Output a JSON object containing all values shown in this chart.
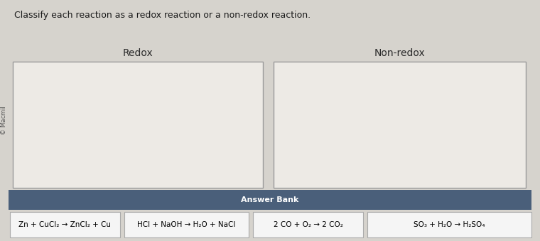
{
  "title": "Classify each reaction as a redox reaction or a non-redox reaction.",
  "copyright": "© Macmil",
  "redox_label": "Redox",
  "nonredox_label": "Non-redox",
  "answer_bank_label": "Answer Bank",
  "answer_bank_bg": "#4a5f7a",
  "answer_bank_items": [
    "Zn + CuCl₂ → ZnCl₂ + Cu",
    "HCl + NaOH → H₂O + NaCl",
    "2 CO + O₂ → 2 CO₂",
    "SO₃ + H₂O → H₂SO₄"
  ],
  "bg_color": "#d6d3cd",
  "box_bg": "#edeae5",
  "box_edge": "#9a9a9a",
  "answer_bank_item_bg": "#f5f5f5",
  "answer_bank_item_border": "#aaaaaa",
  "answer_bank_text_color": "#ffffff",
  "title_color": "#1a1a1a",
  "label_color": "#2a2a2a",
  "copyright_color": "#555555"
}
